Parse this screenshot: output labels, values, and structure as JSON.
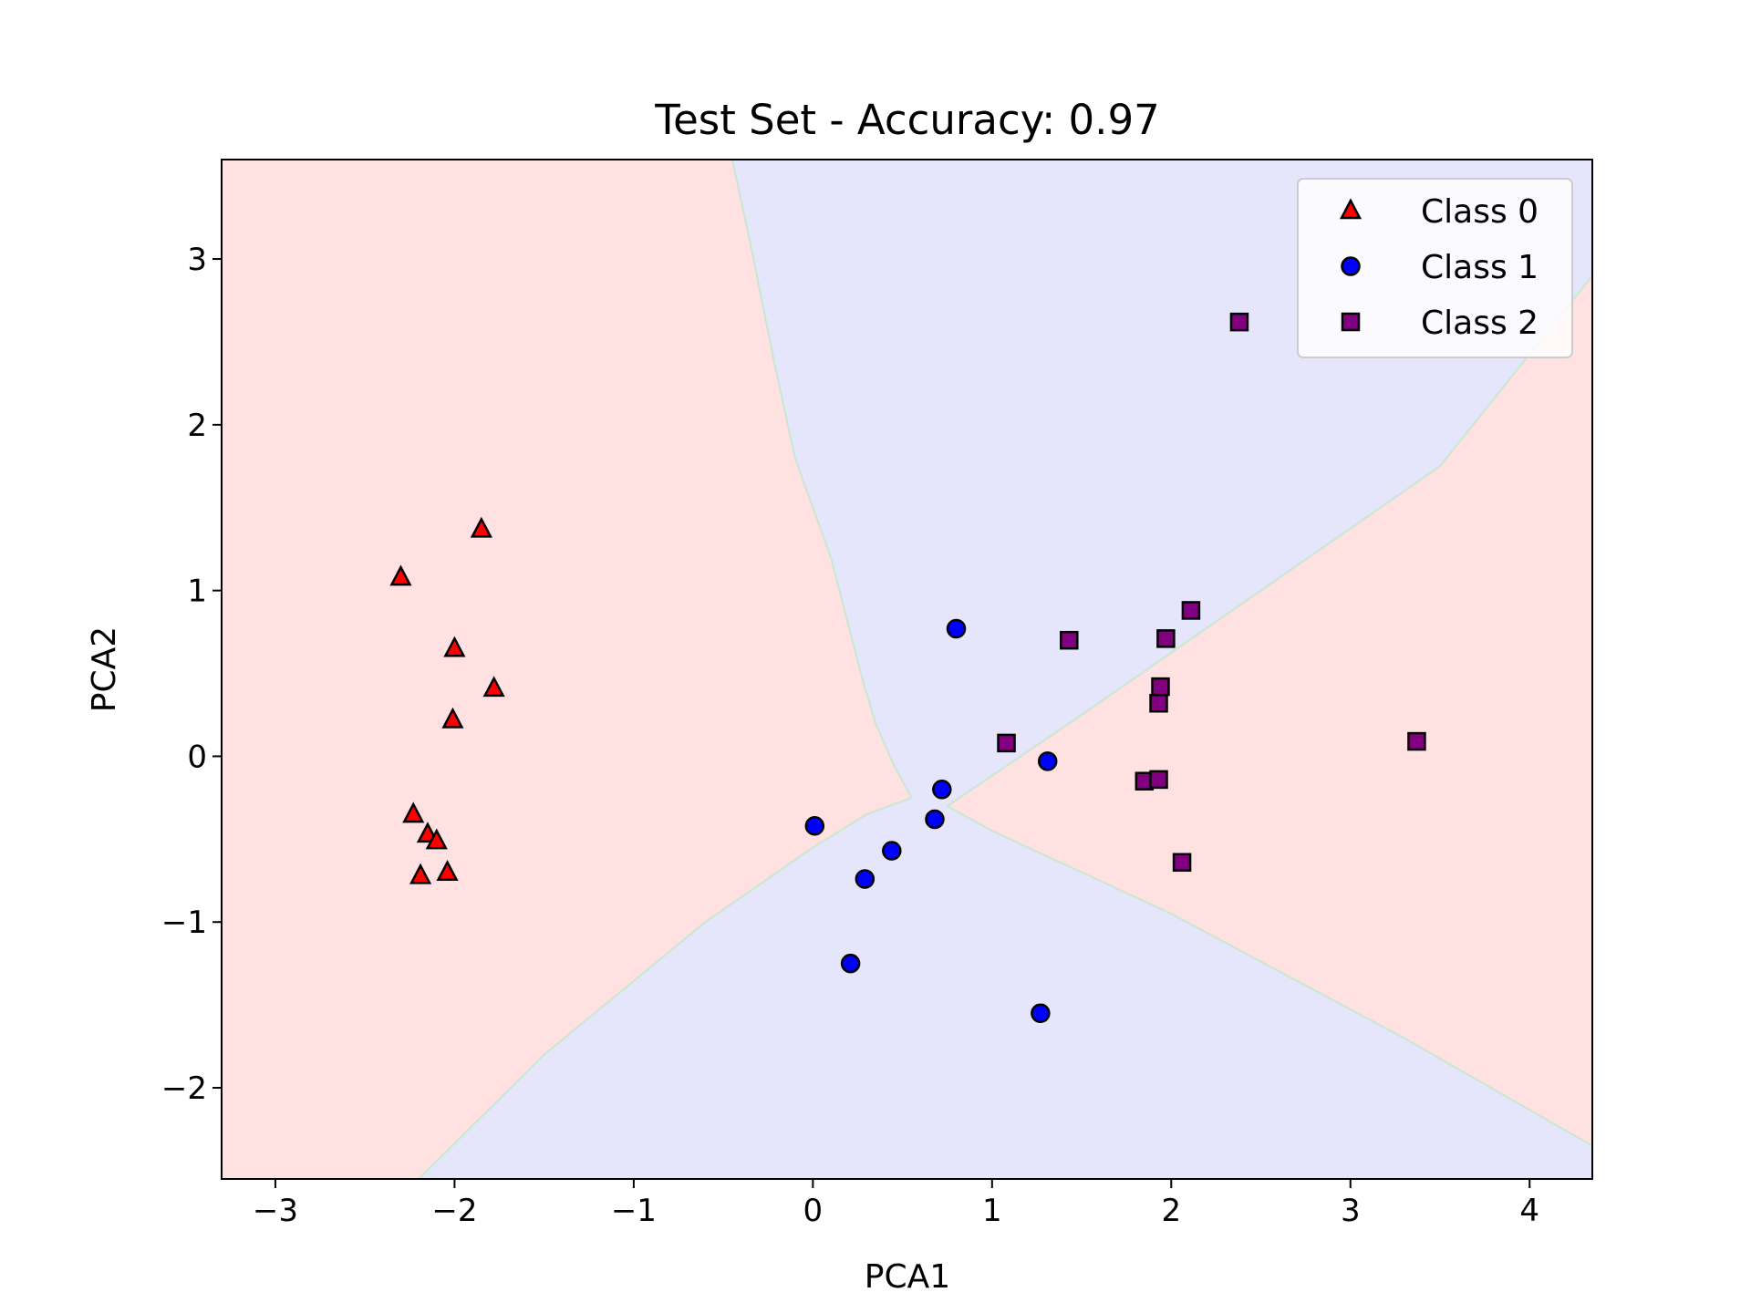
{
  "chart_data": {
    "type": "scatter",
    "title": "Test Set - Accuracy: 0.97",
    "xlabel": "PCA1",
    "ylabel": "PCA2",
    "xlim": [
      -3.3,
      4.35
    ],
    "ylim": [
      -2.55,
      3.6
    ],
    "x_ticks": [
      -3,
      -2,
      -1,
      0,
      1,
      2,
      3,
      4
    ],
    "x_tick_labels": [
      "−3",
      "−2",
      "−1",
      "0",
      "1",
      "2",
      "3",
      "4"
    ],
    "y_ticks": [
      -2,
      -1,
      0,
      1,
      2,
      3
    ],
    "y_tick_labels": [
      "−2",
      "−1",
      "0",
      "1",
      "2",
      "3"
    ],
    "grid": false,
    "legend_position": "top-right",
    "background_regions": [
      {
        "class": "Class 0",
        "color": "#ffe1e1",
        "polygon": [
          [
            -3.3,
            3.6
          ],
          [
            -0.45,
            3.6
          ],
          [
            -0.35,
            3.1
          ],
          [
            -0.22,
            2.4
          ],
          [
            -0.1,
            1.8
          ],
          [
            0.1,
            1.2
          ],
          [
            0.28,
            0.45
          ],
          [
            0.35,
            0.2
          ],
          [
            0.45,
            -0.05
          ],
          [
            0.55,
            -0.25
          ],
          [
            0.3,
            -0.35
          ],
          [
            0.0,
            -0.55
          ],
          [
            -0.6,
            -1.0
          ],
          [
            -1.5,
            -1.8
          ],
          [
            -2.2,
            -2.55
          ],
          [
            -3.3,
            -2.55
          ]
        ]
      },
      {
        "class": "Class 2",
        "color": "#ffe1e1",
        "polygon": [
          [
            0.75,
            -0.3
          ],
          [
            1.5,
            0.25
          ],
          [
            2.5,
            1.0
          ],
          [
            3.5,
            1.75
          ],
          [
            4.35,
            2.9
          ],
          [
            4.35,
            -2.35
          ],
          [
            3.3,
            -1.7
          ],
          [
            2.0,
            -0.95
          ],
          [
            1.0,
            -0.45
          ]
        ]
      }
    ],
    "background_color": "#e5e5fc",
    "series": [
      {
        "name": "Class 0",
        "marker": "triangle",
        "color": "#ff0000",
        "points": [
          [
            -1.85,
            1.37
          ],
          [
            -2.3,
            1.08
          ],
          [
            -2.0,
            0.65
          ],
          [
            -1.78,
            0.41
          ],
          [
            -2.01,
            0.22
          ],
          [
            -2.23,
            -0.35
          ],
          [
            -2.15,
            -0.47
          ],
          [
            -2.1,
            -0.51
          ],
          [
            -2.19,
            -0.72
          ],
          [
            -2.04,
            -0.7
          ]
        ]
      },
      {
        "name": "Class 1",
        "marker": "circle",
        "color": "#0000ff",
        "points": [
          [
            0.8,
            0.77
          ],
          [
            1.31,
            -0.03
          ],
          [
            0.72,
            -0.2
          ],
          [
            0.68,
            -0.38
          ],
          [
            0.01,
            -0.42
          ],
          [
            0.44,
            -0.57
          ],
          [
            0.29,
            -0.74
          ],
          [
            0.21,
            -1.25
          ],
          [
            1.27,
            -1.55
          ]
        ]
      },
      {
        "name": "Class 2",
        "marker": "square",
        "color": "#800080",
        "points": [
          [
            2.38,
            2.62
          ],
          [
            2.11,
            0.88
          ],
          [
            1.43,
            0.7
          ],
          [
            1.97,
            0.71
          ],
          [
            1.94,
            0.42
          ],
          [
            1.93,
            0.32
          ],
          [
            1.08,
            0.08
          ],
          [
            3.37,
            0.09
          ],
          [
            1.85,
            -0.15
          ],
          [
            1.93,
            -0.14
          ],
          [
            2.06,
            -0.64
          ]
        ]
      }
    ]
  }
}
